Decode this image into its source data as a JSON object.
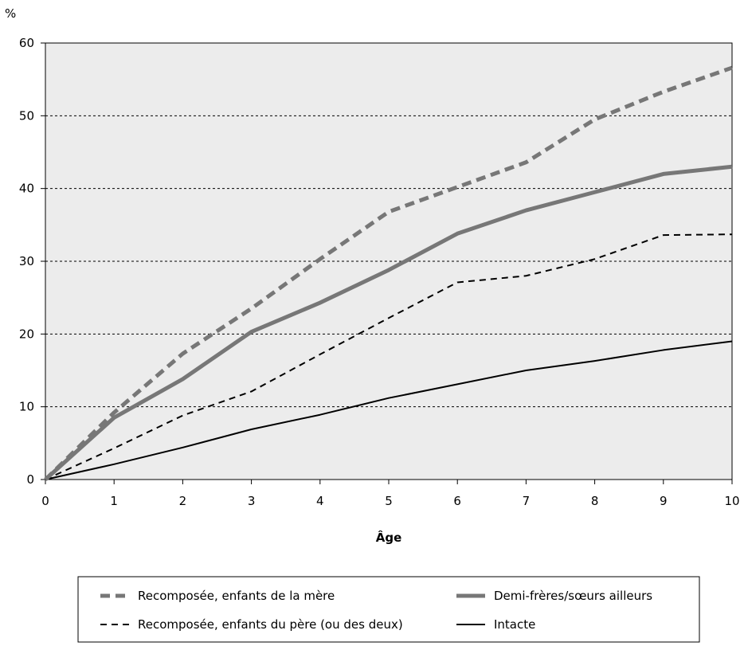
{
  "chart_data": {
    "type": "line",
    "ylabel": "%",
    "xlabel": "Âge",
    "x": [
      0,
      1,
      2,
      3,
      4,
      5,
      6,
      7,
      8,
      9,
      10
    ],
    "xlim": [
      0,
      10
    ],
    "ylim": [
      0,
      60
    ],
    "yticks": [
      0,
      10,
      20,
      30,
      40,
      50,
      60
    ],
    "xticks": [
      0,
      1,
      2,
      3,
      4,
      5,
      6,
      7,
      8,
      9,
      10
    ],
    "grid": "horizontal dashed",
    "plot_background": "#ececec",
    "legend_position": "bottom",
    "series": [
      {
        "name": "Recomposée, enfants de la mère",
        "values": [
          0,
          9.2,
          17.3,
          23.5,
          30.3,
          36.8,
          40.2,
          43.6,
          49.5,
          53.3,
          56.6
        ],
        "color": "#777777",
        "style": "thick-dashed"
      },
      {
        "name": "Demi-frères/sœurs ailleurs",
        "values": [
          0,
          8.5,
          13.8,
          20.3,
          24.3,
          28.8,
          33.8,
          37.0,
          39.5,
          42.0,
          43.0
        ],
        "color": "#777777",
        "style": "thick-solid"
      },
      {
        "name": "Recomposée, enfants du père (ou des deux)",
        "values": [
          0,
          4.3,
          8.8,
          12.1,
          17.2,
          22.2,
          27.1,
          28.0,
          30.3,
          33.6,
          33.7
        ],
        "color": "#000000",
        "style": "thin-dashed"
      },
      {
        "name": "Intacte",
        "values": [
          0,
          2.1,
          4.4,
          6.9,
          8.9,
          11.2,
          13.1,
          15.0,
          16.3,
          17.8,
          19.0
        ],
        "color": "#000000",
        "style": "thin-solid"
      }
    ]
  }
}
